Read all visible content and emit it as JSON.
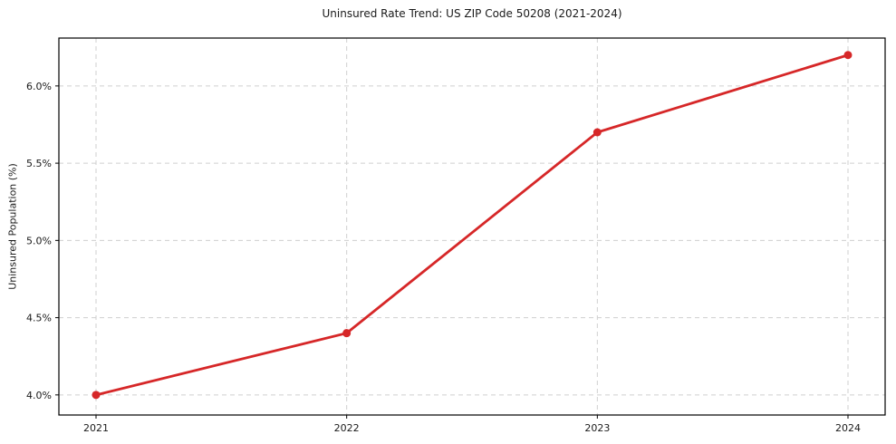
{
  "chart_data": {
    "type": "line",
    "title": "Uninsured Rate Trend: US ZIP Code 50208 (2021-2024)",
    "xlabel": "",
    "ylabel": "Uninsured Population (%)",
    "categories": [
      "2021",
      "2022",
      "2023",
      "2024"
    ],
    "series": [
      {
        "name": "Uninsured Rate",
        "values": [
          4.0,
          4.4,
          5.7,
          6.2
        ]
      }
    ],
    "y_ticks": [
      4.0,
      4.5,
      5.0,
      5.5,
      6.0
    ],
    "y_tick_labels": [
      "4.0%",
      "4.5%",
      "5.0%",
      "5.5%",
      "6.0%"
    ],
    "ylim": [
      3.87,
      6.31
    ],
    "grid": true,
    "grid_style": "dashed",
    "legend_position": "none",
    "line_color": "#d62728",
    "marker": "circle",
    "grid_color": "#cfcfcf",
    "axis_color": "#000000",
    "background_color": "#ffffff"
  }
}
